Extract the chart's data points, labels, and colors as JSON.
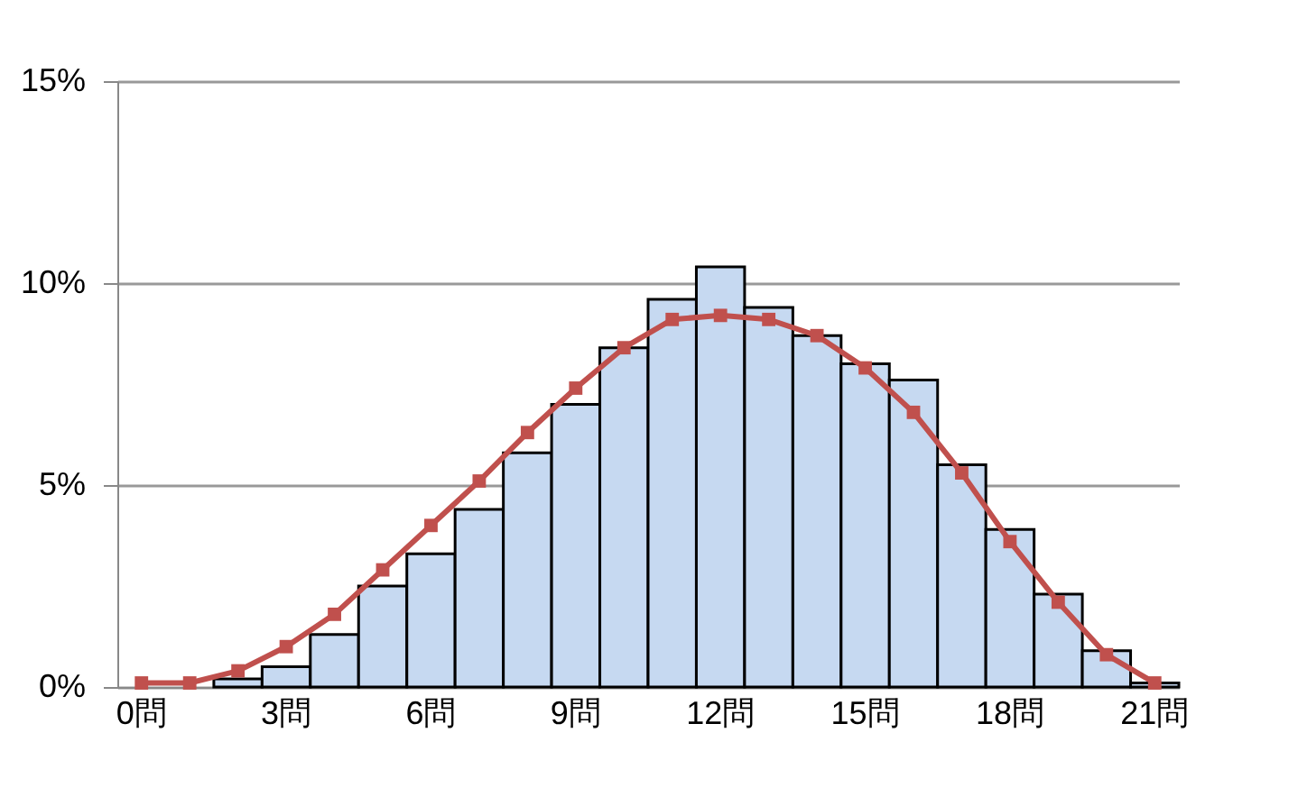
{
  "chart_data": {
    "type": "bar",
    "categories": [
      "0問",
      null,
      null,
      "3問",
      null,
      null,
      "6問",
      null,
      null,
      "9問",
      null,
      null,
      "12問",
      null,
      null,
      "15問",
      null,
      null,
      "18問",
      null,
      null,
      "21問"
    ],
    "series": [
      {
        "color": "#c6d9f1",
        "values": [
          null,
          null,
          0.2,
          0.5,
          1.3,
          2.5,
          3.3,
          4.4,
          5.8,
          7.0,
          8.4,
          9.6,
          10.4,
          9.4,
          8.7,
          8.0,
          7.6,
          5.5,
          3.9,
          2.3,
          0.9,
          0.1
        ]
      },
      {
        "type": "line",
        "color": "#c0504d",
        "values": [
          0.1,
          0.1,
          0.4,
          1.0,
          1.8,
          2.9,
          4.0,
          5.1,
          6.3,
          7.4,
          8.4,
          9.1,
          9.2,
          9.1,
          8.7,
          7.9,
          6.8,
          5.3,
          3.6,
          2.1,
          0.8,
          0.1
        ]
      }
    ],
    "ylim": [
      0,
      15
    ],
    "yticks": [
      {
        "value": 0,
        "label": "0%"
      },
      {
        "value": 5,
        "label": "5%"
      },
      {
        "value": 10,
        "label": "10%"
      },
      {
        "value": 15,
        "label": "15%"
      }
    ],
    "grid": "y",
    "marker": "square",
    "line_style": "solid"
  }
}
